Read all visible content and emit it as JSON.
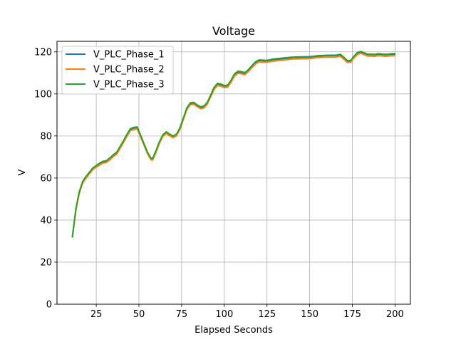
{
  "chart_data": {
    "type": "line",
    "title": "Voltage",
    "xlabel": "Elapsed Seconds",
    "ylabel": "V",
    "xlim": [
      2,
      209
    ],
    "ylim": [
      0,
      125
    ],
    "xticks": [
      25,
      50,
      75,
      100,
      125,
      150,
      175,
      200
    ],
    "yticks": [
      0,
      20,
      40,
      60,
      80,
      100,
      120
    ],
    "grid": true,
    "legend_position": "top-left",
    "colors": {
      "phase1": "#1f77b4",
      "phase2": "#ff7f0e",
      "phase3": "#2ca02c"
    },
    "x": [
      11,
      13,
      15,
      17,
      19,
      21,
      23,
      25,
      27,
      29,
      31,
      33,
      35,
      37,
      39,
      41,
      43,
      45,
      47,
      49,
      51,
      53,
      55,
      57,
      58,
      60,
      62,
      64,
      66,
      68,
      70,
      72,
      74,
      76,
      78,
      80,
      82,
      84,
      86,
      88,
      90,
      92,
      94,
      96,
      98,
      100,
      102,
      104,
      106,
      108,
      110,
      112,
      114,
      116,
      118,
      120,
      122,
      124,
      126,
      128,
      130,
      135,
      140,
      145,
      150,
      155,
      160,
      165,
      168,
      170,
      172,
      174,
      176,
      178,
      180,
      182,
      184,
      186,
      188,
      190,
      192,
      194,
      196,
      198,
      200
    ],
    "series": [
      {
        "name": "V_PLC_Phase_1",
        "values": [
          32,
          45,
          53,
          58,
          60.5,
          62.5,
          64.5,
          65.7,
          66.8,
          67.7,
          68,
          69.3,
          70.8,
          72,
          74.8,
          77.5,
          80.5,
          83.2,
          83.8,
          84,
          80,
          76,
          72,
          69.2,
          69,
          72.8,
          77,
          80.3,
          81.7,
          80.6,
          79.7,
          80.6,
          83.6,
          88.2,
          93,
          95.4,
          95.7,
          94.6,
          93.6,
          93.9,
          95.7,
          99.2,
          102.8,
          104.7,
          104.4,
          103.7,
          103.9,
          106.3,
          109.3,
          110.5,
          110.3,
          109.8,
          111.2,
          113,
          114.8,
          115.8,
          115.8,
          115.7,
          115.8,
          116.2,
          116.4,
          116.8,
          117.3,
          117.4,
          117.5,
          118,
          118.2,
          118.2,
          118.6,
          117.2,
          115.7,
          115.7,
          117.8,
          119.5,
          120,
          119.3,
          118.7,
          118.7,
          118.6,
          118.9,
          118.8,
          118.6,
          118.7,
          118.9,
          118.9
        ]
      },
      {
        "name": "V_PLC_Phase_2",
        "values": [
          32,
          44.5,
          52.5,
          57.5,
          60,
          62,
          64,
          65.2,
          66.2,
          67.1,
          67.4,
          68.7,
          70.2,
          71.4,
          74.2,
          76.9,
          79.9,
          82.5,
          83.1,
          83.3,
          79.5,
          75.5,
          71.6,
          68.7,
          68.5,
          72.3,
          76.5,
          79.8,
          81.2,
          80.1,
          79.2,
          80.1,
          83.1,
          87.7,
          92.4,
          94.8,
          95.1,
          94,
          93,
          93.3,
          95.1,
          98.6,
          102.1,
          104,
          103.7,
          103,
          103.2,
          105.6,
          108.6,
          109.8,
          109.6,
          109.1,
          110.5,
          112.3,
          114.1,
          115.1,
          115.1,
          115,
          115.2,
          115.5,
          115.7,
          116.1,
          116.6,
          116.7,
          116.8,
          117.3,
          117.5,
          117.5,
          117.9,
          116.5,
          115,
          115,
          117.1,
          118.8,
          119.3,
          118.6,
          118,
          118,
          117.9,
          118.2,
          118.1,
          117.9,
          118,
          118.2,
          118.2
        ]
      },
      {
        "name": "V_PLC_Phase_3",
        "values": [
          32,
          45.2,
          53.3,
          58.3,
          60.8,
          62.8,
          64.8,
          66,
          67.1,
          68,
          68.3,
          69.6,
          71.1,
          72.3,
          75.1,
          77.8,
          80.8,
          83.5,
          84.1,
          84.3,
          80.3,
          76.3,
          72.3,
          69.5,
          69.3,
          73.1,
          77.3,
          80.6,
          82,
          80.9,
          80,
          80.9,
          83.9,
          88.5,
          93.3,
          95.7,
          96,
          94.9,
          93.9,
          94.2,
          96,
          99.5,
          103.1,
          105,
          104.7,
          104,
          104.2,
          106.6,
          109.6,
          110.8,
          110.6,
          110.1,
          111.5,
          113.3,
          115.1,
          116.1,
          116.1,
          116,
          116.1,
          116.5,
          116.7,
          117.1,
          117.5,
          117.6,
          117.7,
          118.2,
          118.4,
          118.4,
          118.8,
          117.4,
          115.9,
          115.9,
          118,
          119.7,
          120.2,
          119.5,
          118.9,
          118.9,
          118.8,
          119.1,
          119,
          118.8,
          118.9,
          119.1,
          119.1
        ]
      }
    ]
  }
}
